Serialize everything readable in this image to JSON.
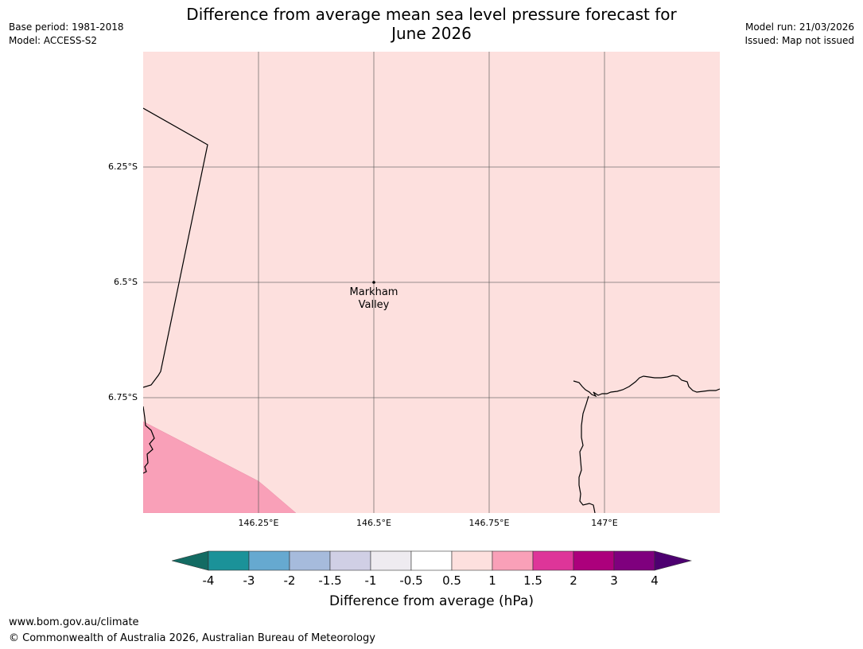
{
  "header": {
    "base_period": "Base period: 1981-2018",
    "model": "Model: ACCESS-S2",
    "model_run": "Model run: 21/03/2026",
    "issued": "Issued: Map not issued"
  },
  "title": {
    "line1": "Difference from average mean sea level pressure forecast for",
    "line2": "June 2026"
  },
  "map": {
    "background_color": "#fde0de",
    "region_color": "#f9a0b8",
    "lat_labels": [
      "6.25°S",
      "6.5°S",
      "6.75°S"
    ],
    "lon_labels": [
      "146.25°E",
      "146.5°E",
      "146.75°E",
      "147°E"
    ],
    "place": {
      "name_line1": "Markham",
      "name_line2": "Valley"
    }
  },
  "colorbar": {
    "ticks": [
      "-4",
      "-3",
      "-2",
      "-1.5",
      "-1",
      "-0.5",
      "0.5",
      "1",
      "1.5",
      "2",
      "3",
      "4"
    ],
    "colors": [
      "#136b63",
      "#1b9299",
      "#66a9d0",
      "#a6bbdc",
      "#d0cfe5",
      "#eeebf0",
      "#ffffff",
      "#fde0de",
      "#f9a0b8",
      "#de3599",
      "#ac007c",
      "#7f007e",
      "#4d0070"
    ],
    "label": "Difference from average (hPa)"
  },
  "footer": {
    "url": "www.bom.gov.au/climate",
    "copyright": "© Commonwealth of Australia 2026, Australian Bureau of Meteorology"
  }
}
